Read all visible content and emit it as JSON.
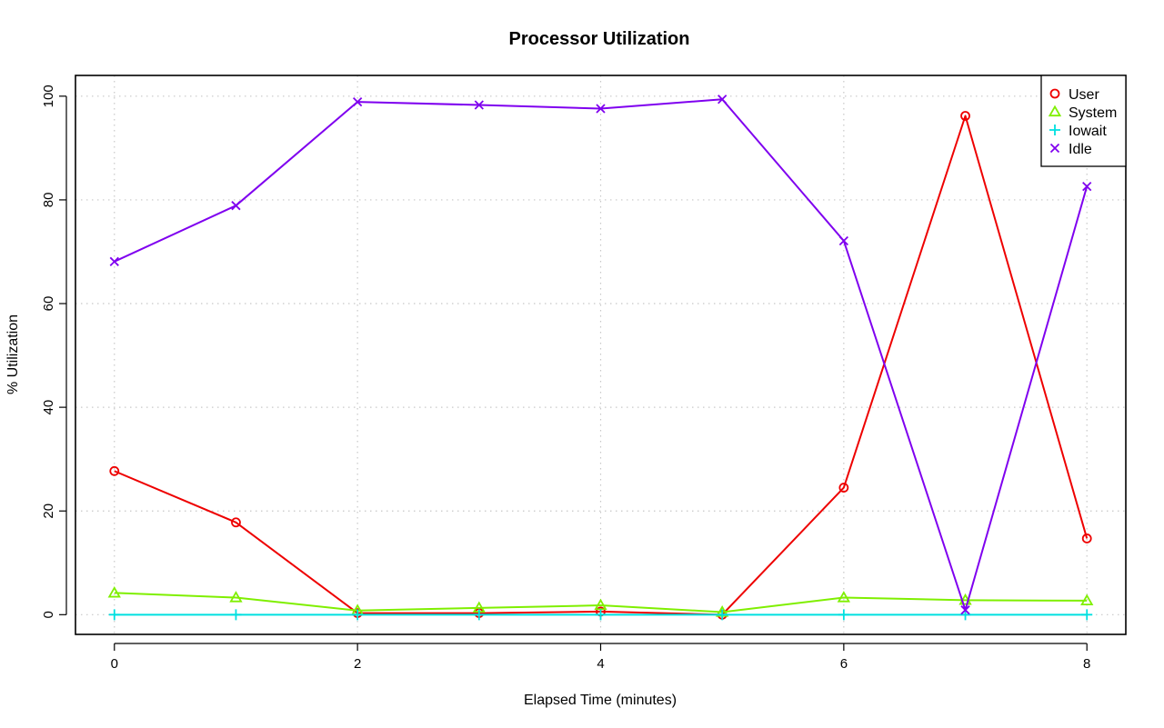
{
  "chart_data": {
    "type": "line",
    "title": "Processor Utilization",
    "xlabel": "Elapsed Time (minutes)",
    "ylabel": "% Utilization",
    "xlim": [
      -0.32,
      8.32
    ],
    "ylim": [
      -3.8,
      104
    ],
    "x_ticks": [
      0,
      2,
      4,
      6,
      8
    ],
    "y_ticks": [
      0,
      20,
      40,
      60,
      80,
      100
    ],
    "x_tick_labels": [
      "0",
      "2",
      "4",
      "6",
      "8"
    ],
    "y_tick_labels": [
      "0",
      "20",
      "40",
      "60",
      "80",
      "100"
    ],
    "grid": true,
    "legend_position": "top-right",
    "x": [
      0,
      1,
      2,
      3,
      4,
      5,
      6,
      7,
      8
    ],
    "series": [
      {
        "name": "User",
        "color": "#ee0000",
        "marker": "circle",
        "values": [
          27.7,
          17.8,
          0.3,
          0.3,
          0.6,
          0.0,
          24.5,
          96.2,
          14.7
        ]
      },
      {
        "name": "System",
        "color": "#7fef00",
        "marker": "triangle",
        "values": [
          4.2,
          3.3,
          0.8,
          1.3,
          1.8,
          0.5,
          3.3,
          2.8,
          2.7
        ]
      },
      {
        "name": "Iowait",
        "color": "#00e0e0",
        "marker": "plus",
        "values": [
          0.0,
          0.0,
          0.0,
          0.0,
          0.0,
          0.0,
          0.0,
          0.0,
          0.0
        ]
      },
      {
        "name": "Idle",
        "color": "#7f00ef",
        "marker": "cross",
        "values": [
          68.1,
          78.9,
          98.9,
          98.3,
          97.6,
          99.4,
          72.1,
          0.9,
          82.6
        ]
      }
    ]
  }
}
